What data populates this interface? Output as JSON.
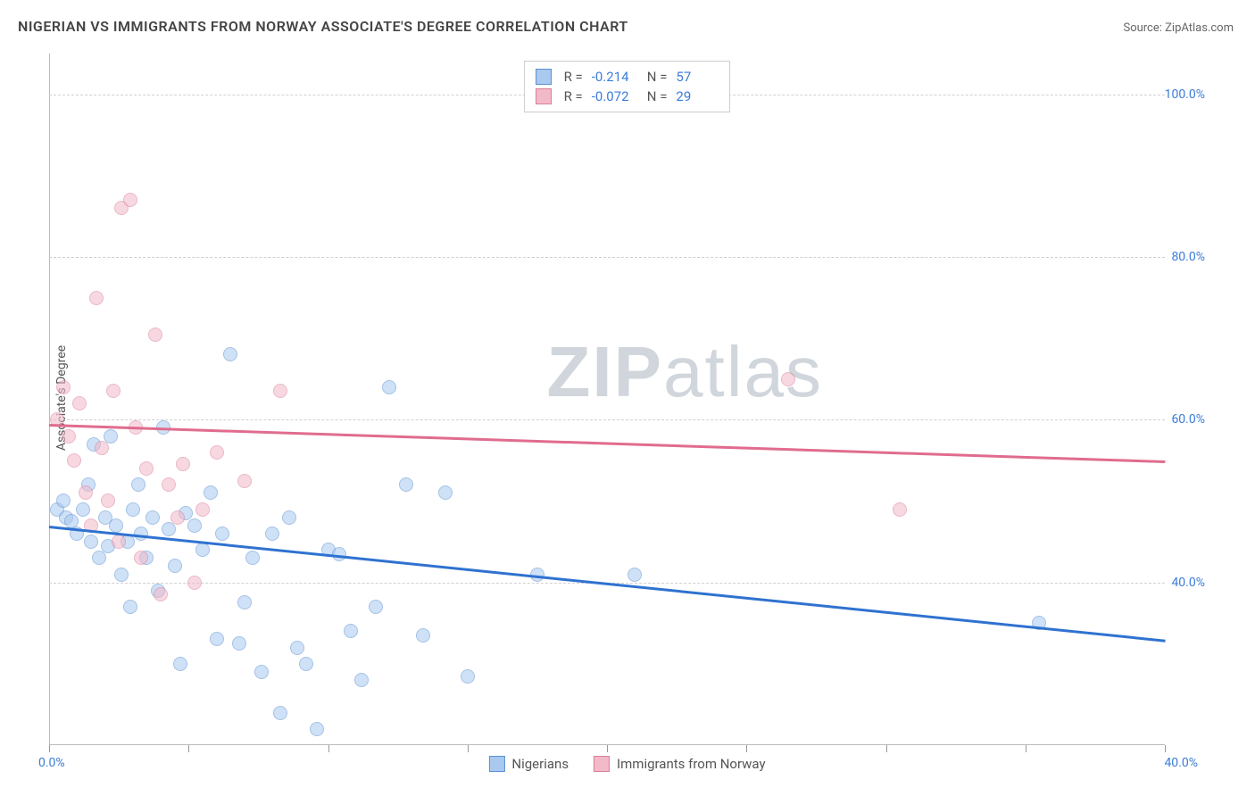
{
  "title": "NIGERIAN VS IMMIGRANTS FROM NORWAY ASSOCIATE'S DEGREE CORRELATION CHART",
  "source_prefix": "Source: ",
  "source": "ZipAtlas.com",
  "y_axis_label": "Associate's Degree",
  "watermark_a": "ZIP",
  "watermark_b": "atlas",
  "chart": {
    "type": "scatter",
    "background_color": "#ffffff",
    "grid_color": "#d0d0d0",
    "xlim": [
      0,
      40
    ],
    "ylim": [
      20,
      105
    ],
    "x_ticks": [
      0,
      5,
      10,
      15,
      20,
      25,
      30,
      35,
      40
    ],
    "x_min_label": "0.0%",
    "x_max_label": "40.0%",
    "y_ticks": [
      40,
      60,
      80,
      100
    ],
    "y_tick_labels": [
      "40.0%",
      "60.0%",
      "80.0%",
      "100.0%"
    ],
    "marker_radius": 8,
    "marker_opacity": 0.55,
    "series": [
      {
        "name": "Nigerians",
        "color": "#6aa1e4",
        "fill": "#a9c9ef",
        "border": "#5b90d2",
        "R": "-0.214",
        "N": "57",
        "trend": {
          "x1": 0,
          "y1": 47,
          "x2": 40,
          "y2": 33,
          "color": "#2f72d0",
          "width": 2.5
        },
        "points": [
          [
            0.3,
            49
          ],
          [
            0.5,
            50
          ],
          [
            0.6,
            48
          ],
          [
            0.8,
            47.5
          ],
          [
            1.0,
            46
          ],
          [
            1.2,
            49
          ],
          [
            1.4,
            52
          ],
          [
            1.5,
            45
          ],
          [
            1.6,
            57
          ],
          [
            1.8,
            43
          ],
          [
            2.0,
            48
          ],
          [
            2.1,
            44.5
          ],
          [
            2.2,
            58
          ],
          [
            2.4,
            47
          ],
          [
            2.6,
            41
          ],
          [
            2.8,
            45
          ],
          [
            2.9,
            37
          ],
          [
            3.0,
            49
          ],
          [
            3.2,
            52
          ],
          [
            3.3,
            46
          ],
          [
            3.5,
            43
          ],
          [
            3.7,
            48
          ],
          [
            3.9,
            39
          ],
          [
            4.1,
            59
          ],
          [
            4.3,
            46.5
          ],
          [
            4.5,
            42
          ],
          [
            4.7,
            30
          ],
          [
            4.9,
            48.5
          ],
          [
            5.2,
            47
          ],
          [
            5.5,
            44
          ],
          [
            5.8,
            51
          ],
          [
            6.0,
            33
          ],
          [
            6.2,
            46
          ],
          [
            6.5,
            68
          ],
          [
            6.8,
            32.5
          ],
          [
            7.0,
            37.5
          ],
          [
            7.3,
            43
          ],
          [
            7.6,
            29
          ],
          [
            8.0,
            46
          ],
          [
            8.3,
            24
          ],
          [
            8.6,
            48
          ],
          [
            8.9,
            32
          ],
          [
            9.2,
            30
          ],
          [
            9.6,
            22
          ],
          [
            10.0,
            44
          ],
          [
            10.4,
            43.5
          ],
          [
            10.8,
            34
          ],
          [
            11.2,
            28
          ],
          [
            11.7,
            37
          ],
          [
            12.2,
            64
          ],
          [
            12.8,
            52
          ],
          [
            13.4,
            33.5
          ],
          [
            14.2,
            51
          ],
          [
            15.0,
            28.5
          ],
          [
            17.5,
            41
          ],
          [
            21.0,
            41
          ],
          [
            35.5,
            35
          ]
        ]
      },
      {
        "name": "Immigrants from Norway",
        "color": "#e590aa",
        "fill": "#f2b9c9",
        "border": "#da7f9a",
        "R": "-0.072",
        "N": "29",
        "trend": {
          "x1": 0,
          "y1": 59.5,
          "x2": 40,
          "y2": 55,
          "color": "#e06c8e",
          "width": 2.5
        },
        "points": [
          [
            0.3,
            60
          ],
          [
            0.5,
            64
          ],
          [
            0.7,
            58
          ],
          [
            0.9,
            55
          ],
          [
            1.1,
            62
          ],
          [
            1.3,
            51
          ],
          [
            1.5,
            47
          ],
          [
            1.7,
            75
          ],
          [
            1.9,
            56.5
          ],
          [
            2.1,
            50
          ],
          [
            2.3,
            63.5
          ],
          [
            2.5,
            45
          ],
          [
            2.6,
            86
          ],
          [
            2.9,
            87
          ],
          [
            3.1,
            59
          ],
          [
            3.3,
            43
          ],
          [
            3.5,
            54
          ],
          [
            3.8,
            70.5
          ],
          [
            4.0,
            38.5
          ],
          [
            4.3,
            52
          ],
          [
            4.6,
            48
          ],
          [
            4.8,
            54.5
          ],
          [
            5.2,
            40
          ],
          [
            5.5,
            49
          ],
          [
            6.0,
            56
          ],
          [
            7.0,
            52.5
          ],
          [
            8.3,
            63.5
          ],
          [
            26.5,
            65
          ],
          [
            30.5,
            49
          ]
        ]
      }
    ]
  },
  "stats_labels": {
    "R": "R =",
    "N": "N ="
  },
  "legend": [
    {
      "label": "Nigerians",
      "fill": "#a9c9ef",
      "border": "#5b90d2"
    },
    {
      "label": "Immigrants from Norway",
      "fill": "#f2b9c9",
      "border": "#da7f9a"
    }
  ]
}
